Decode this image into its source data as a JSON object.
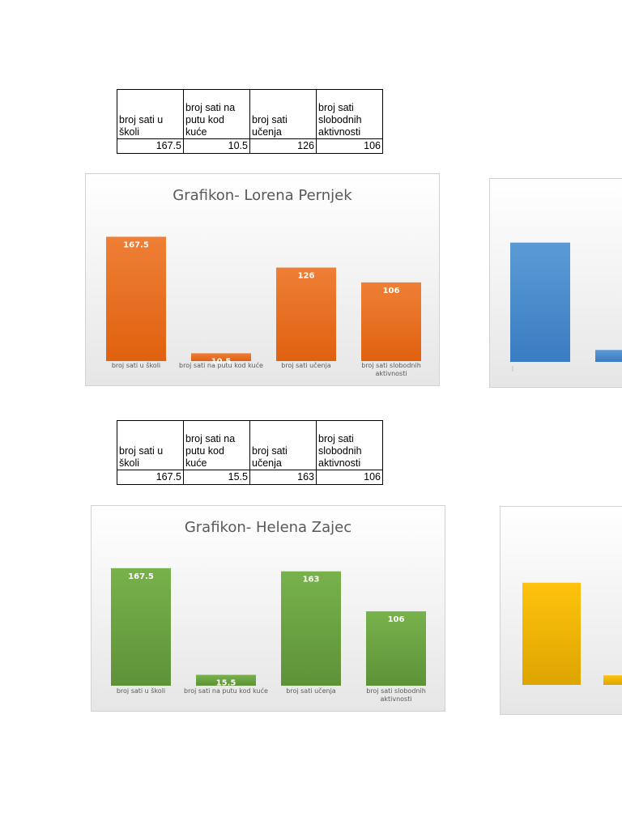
{
  "tables": [
    {
      "headers": [
        "broj sati u školi",
        "broj sati na putu kod kuće",
        "broj sati učenja",
        "broj sati slobodnih aktivnosti"
      ],
      "values": [
        "167.5",
        "10.5",
        "126",
        "106"
      ]
    },
    {
      "headers": [
        "broj sati u školi",
        "broj sati na putu kod kuće",
        "broj sati učenja",
        "broj sati slobodnih aktivnosti"
      ],
      "values": [
        "167.5",
        "15.5",
        "163",
        "106"
      ]
    }
  ],
  "chart_data": [
    {
      "type": "bar",
      "title": "Grafikon- Lorena Pernjek",
      "categories": [
        "broj sati u školi",
        "broj sati na putu kod kuće",
        "broj sati učenja",
        "broj sati slobodnih aktivnosti"
      ],
      "values": [
        167.5,
        10.5,
        126,
        106
      ],
      "data_labels": [
        "167.5",
        "10.5",
        "126",
        "106"
      ],
      "colors": {
        "top": "#ee7f36",
        "bottom": "#e0610f"
      },
      "ylim": [
        0,
        180
      ],
      "grid": false
    },
    {
      "type": "bar",
      "title": "Grafikon- Helena Zajec",
      "categories": [
        "broj sati u školi",
        "broj sati na putu kod kuće",
        "broj sati učenja",
        "broj sati slobodnih aktivnosti"
      ],
      "values": [
        167.5,
        15.5,
        163,
        106
      ],
      "data_labels": [
        "167.5",
        "15.5",
        "163",
        "106"
      ],
      "colors": {
        "top": "#77b24b",
        "bottom": "#5e9238"
      },
      "ylim": [
        0,
        180
      ],
      "grid": false
    },
    {
      "type": "bar",
      "title": "",
      "categories": [
        "",
        ""
      ],
      "values": [
        170,
        17
      ],
      "data_labels": [],
      "colors": {
        "top": "#5b9bd5",
        "bottom": "#3a7cc2"
      },
      "ylim": [
        0,
        180
      ],
      "grid": false
    },
    {
      "type": "bar",
      "title": "",
      "categories": [
        "",
        ""
      ],
      "values": [
        160,
        15
      ],
      "data_labels": [],
      "colors": {
        "top": "#ffc20e",
        "bottom": "#dca500"
      },
      "ylim": [
        0,
        180
      ],
      "grid": false
    }
  ]
}
